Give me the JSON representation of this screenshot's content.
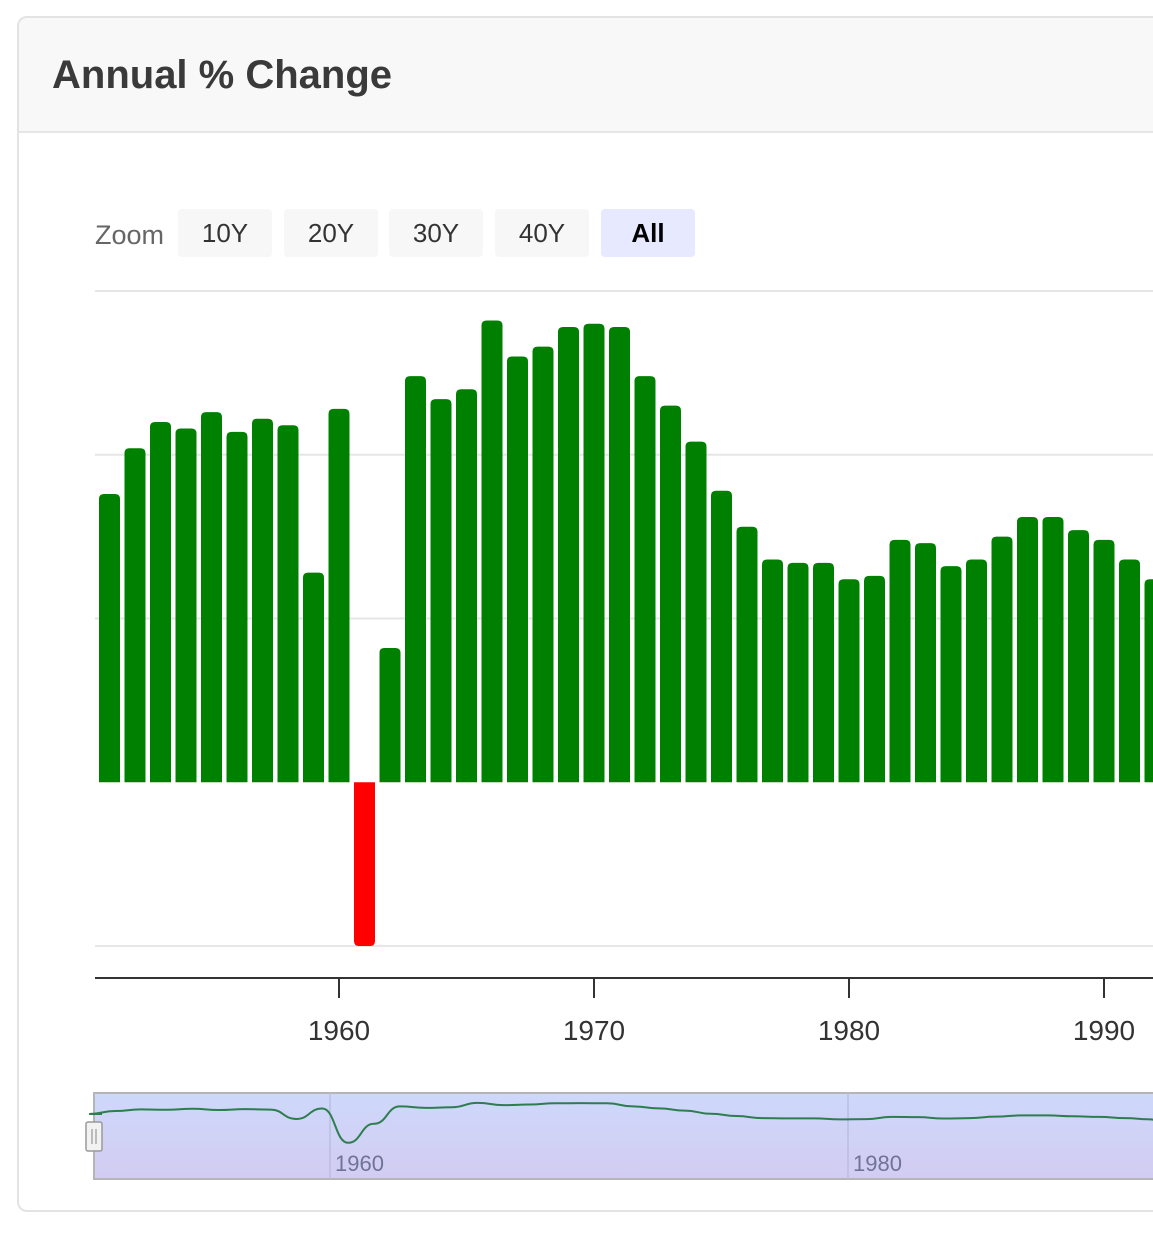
{
  "card": {
    "title": "Annual % Change"
  },
  "zoom": {
    "label": "Zoom",
    "buttons": [
      "10Y",
      "20Y",
      "30Y",
      "40Y",
      "All"
    ],
    "active": "All"
  },
  "colors": {
    "positive": "#008000",
    "negative": "#ff0000",
    "grid": "#e6e6e6",
    "navigator_fill": "#ccd6ff",
    "navigator_line": "#2e7d4f"
  },
  "navigator": {
    "tick_labels": [
      "1960",
      "1980"
    ]
  },
  "chart_data": {
    "type": "bar",
    "title": "",
    "xlabel": "",
    "ylabel": "",
    "x_ticks": [
      "1960",
      "1970",
      "1980",
      "1990"
    ],
    "ylim": [
      -5,
      15
    ],
    "y_gridlines": [
      -5,
      0,
      5,
      10,
      15
    ],
    "grid": true,
    "legend": "none",
    "x": [
      1951,
      1952,
      1953,
      1954,
      1955,
      1956,
      1957,
      1958,
      1959,
      1960,
      1961,
      1962,
      1963,
      1964,
      1965,
      1966,
      1967,
      1968,
      1969,
      1970,
      1971,
      1972,
      1973,
      1974,
      1975,
      1976,
      1977,
      1978,
      1979,
      1980,
      1981,
      1982,
      1983,
      1984,
      1985,
      1986,
      1987,
      1988,
      1989,
      1990,
      1991,
      1992
    ],
    "values": [
      8.8,
      10.2,
      11.0,
      10.8,
      11.3,
      10.7,
      11.1,
      10.9,
      6.4,
      11.4,
      -5.0,
      4.1,
      12.4,
      11.7,
      12.0,
      14.1,
      13.0,
      13.3,
      13.9,
      14.0,
      13.9,
      12.4,
      11.5,
      10.4,
      8.9,
      7.8,
      6.8,
      6.7,
      6.7,
      6.2,
      6.3,
      7.4,
      7.3,
      6.6,
      6.8,
      7.5,
      8.1,
      8.1,
      7.7,
      7.4,
      6.8,
      6.2
    ]
  }
}
